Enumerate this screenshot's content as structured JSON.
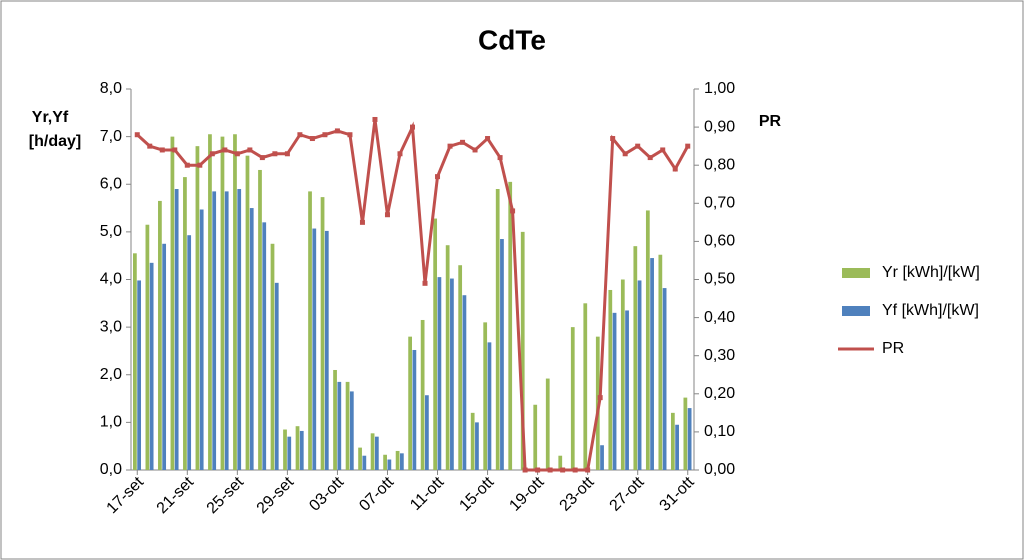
{
  "chart_data": {
    "type": "bar-line",
    "title": "CdTe",
    "ylabel": [
      "Yr,Yf",
      "[h/day]"
    ],
    "y2label": "PR",
    "categories": [
      "17-set",
      null,
      null,
      null,
      "21-set",
      null,
      null,
      null,
      "25-set",
      null,
      null,
      null,
      "29-set",
      null,
      null,
      null,
      "03-ott",
      null,
      null,
      null,
      "07-ott",
      null,
      null,
      null,
      "11-ott",
      null,
      null,
      null,
      "15-ott",
      null,
      null,
      null,
      "19-ott",
      null,
      null,
      null,
      "23-ott",
      null,
      null,
      null,
      "27-ott",
      null,
      null,
      null,
      "31-ott"
    ],
    "series": [
      {
        "name": "Yr [kWh]/[kW]",
        "color": "#9bbb59",
        "type": "bar",
        "values": [
          4.55,
          5.15,
          5.65,
          7.0,
          6.15,
          6.8,
          7.05,
          7.0,
          7.05,
          6.6,
          6.3,
          4.75,
          0.85,
          0.92,
          5.85,
          5.73,
          2.1,
          1.85,
          0.47,
          0.77,
          0.32,
          0.4,
          2.8,
          3.15,
          5.28,
          4.72,
          4.3,
          1.2,
          3.1,
          5.9,
          6.05,
          5.0,
          1.37,
          1.92,
          0.3,
          3.0,
          3.5,
          2.8,
          3.78,
          4.0,
          4.7,
          5.45,
          4.52,
          1.2,
          1.52
        ]
      },
      {
        "name": "Yf [kWh]/[kW]",
        "color": "#4f81bd",
        "type": "bar",
        "values": [
          3.98,
          4.35,
          4.75,
          5.9,
          4.93,
          5.47,
          5.85,
          5.85,
          5.9,
          5.5,
          5.2,
          3.93,
          0.7,
          0.82,
          5.07,
          5.02,
          1.85,
          1.65,
          0.3,
          0.7,
          0.22,
          0.35,
          2.52,
          1.57,
          4.05,
          4.02,
          3.67,
          1.0,
          2.68,
          4.85,
          0,
          0,
          0,
          0,
          0,
          0,
          0,
          0.52,
          3.3,
          3.35,
          3.98,
          4.45,
          3.82,
          0.95,
          1.3
        ]
      },
      {
        "name": "PR",
        "color": "#c0504d",
        "type": "line",
        "axis": "y2",
        "values": [
          0.88,
          0.85,
          0.84,
          0.84,
          0.8,
          0.8,
          0.83,
          0.84,
          0.83,
          0.84,
          0.82,
          0.83,
          0.83,
          0.88,
          0.87,
          0.88,
          0.89,
          0.88,
          0.65,
          0.92,
          0.67,
          0.83,
          0.9,
          0.49,
          0.77,
          0.85,
          0.86,
          0.84,
          0.87,
          0.82,
          0.68,
          0.0,
          0.0,
          0.0,
          0.0,
          0.0,
          0.0,
          0.19,
          0.87,
          0.83,
          0.85,
          0.82,
          0.84,
          0.79,
          0.85
        ]
      }
    ],
    "ylim": [
      0,
      8
    ],
    "yticks": [
      {
        "value": 0,
        "label": "0,0"
      },
      {
        "value": 1,
        "label": "1,0"
      },
      {
        "value": 2,
        "label": "2,0"
      },
      {
        "value": 3,
        "label": "3,0"
      },
      {
        "value": 4,
        "label": "4,0"
      },
      {
        "value": 5,
        "label": "5,0"
      },
      {
        "value": 6,
        "label": "6,0"
      },
      {
        "value": 7,
        "label": "7,0"
      },
      {
        "value": 8,
        "label": "8,0"
      }
    ],
    "y2lim": [
      0,
      1
    ],
    "y2ticks": [
      {
        "value": 0,
        "label": "0,00"
      },
      {
        "value": 0.1,
        "label": "0,10"
      },
      {
        "value": 0.2,
        "label": "0,20"
      },
      {
        "value": 0.3,
        "label": "0,30"
      },
      {
        "value": 0.4,
        "label": "0,40"
      },
      {
        "value": 0.5,
        "label": "0,50"
      },
      {
        "value": 0.6,
        "label": "0,60"
      },
      {
        "value": 0.7,
        "label": "0,70"
      },
      {
        "value": 0.8,
        "label": "0,80"
      },
      {
        "value": 0.9,
        "label": "0,90"
      },
      {
        "value": 1,
        "label": "1,00"
      }
    ],
    "grid": false,
    "legend": "right"
  }
}
